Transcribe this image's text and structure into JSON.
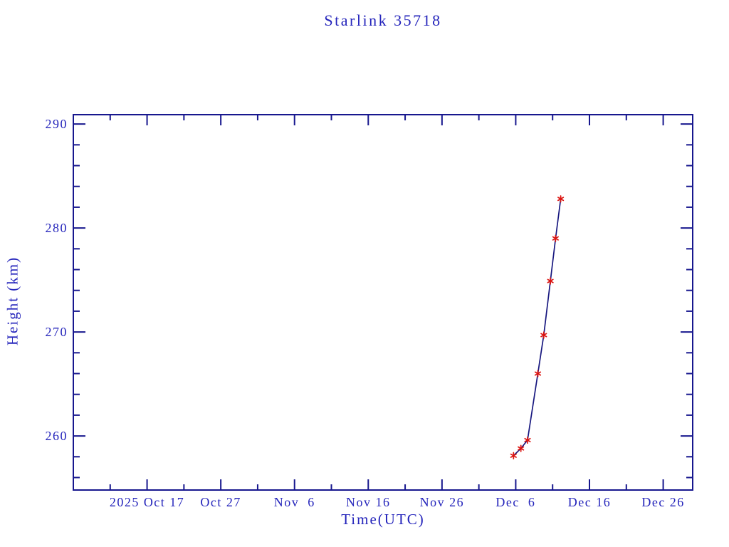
{
  "title": "Starlink 35718",
  "colors": {
    "background": "#ffffff",
    "text": "#2424bb",
    "frame": "#17178e",
    "line": "#17177f",
    "marker": "#dc1511"
  },
  "chart_data": {
    "type": "line",
    "title": "Starlink 35718",
    "xlabel": "Time(UTC)",
    "ylabel": "Height (km)",
    "series_name": "Height (km)",
    "marker": "red-asterisk",
    "grid": false,
    "legend": null,
    "x_unit": "days since 2025 Oct 7",
    "xlim": [
      0,
      84
    ],
    "ylim": [
      254.8,
      290.9
    ],
    "x_major_ticks": [
      {
        "day": 10,
        "label": "2025 Oct 17"
      },
      {
        "day": 20,
        "label": "Oct 27"
      },
      {
        "day": 30,
        "label": "Nov  6"
      },
      {
        "day": 40,
        "label": "Nov 16"
      },
      {
        "day": 50,
        "label": "Nov 26"
      },
      {
        "day": 60,
        "label": "Dec  6"
      },
      {
        "day": 70,
        "label": "Dec 16"
      },
      {
        "day": 80,
        "label": "Dec 26"
      }
    ],
    "x_minor_ticks": [
      5,
      15,
      25,
      35,
      45,
      55,
      65,
      75
    ],
    "y_major_ticks": [
      260,
      270,
      280,
      290
    ],
    "y_minor_step": 2,
    "points": [
      {
        "date": "2025 Dec 5.7",
        "day": 59.7,
        "height_km": 258.1
      },
      {
        "date": "2025 Dec 6.7",
        "day": 60.7,
        "height_km": 258.8
      },
      {
        "date": "2025 Dec 7.6",
        "day": 61.6,
        "height_km": 259.6
      },
      {
        "date": "2025 Dec 9.0",
        "day": 63.0,
        "height_km": 266.0
      },
      {
        "date": "2025 Dec 9.8",
        "day": 63.8,
        "height_km": 269.7
      },
      {
        "date": "2025 Dec 10.7",
        "day": 64.7,
        "height_km": 274.9
      },
      {
        "date": "2025 Dec 11.4",
        "day": 65.4,
        "height_km": 279.0
      },
      {
        "date": "2025 Dec 12.1",
        "day": 66.1,
        "height_km": 282.8
      }
    ]
  }
}
